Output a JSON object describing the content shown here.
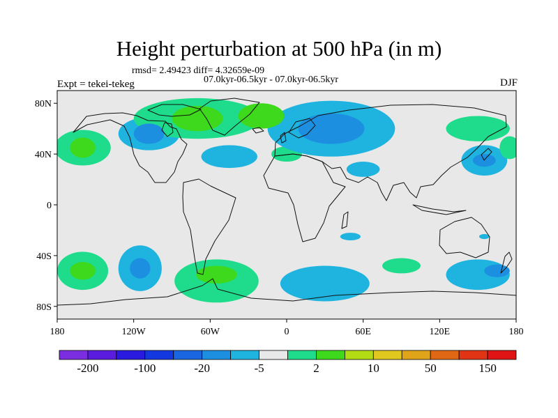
{
  "chart_data": {
    "type": "heatmap",
    "title": "Height perturbation at 500 hPa (in m)",
    "subtitle_rmsd": "rmsd= 2.49423 diff= 4.32659e-09",
    "subtitle_period": "07.0kyr-06.5kyr - 07.0kyr-06.5kyr",
    "left_label": "Expt = tekei-tekeg",
    "right_label": "DJF",
    "xlabel": "",
    "ylabel": "",
    "xlim": [
      -180,
      180
    ],
    "ylim": [
      -90,
      90
    ],
    "x_ticks": [
      {
        "value": -180,
        "label": "180"
      },
      {
        "value": -120,
        "label": "120W"
      },
      {
        "value": -60,
        "label": "60W"
      },
      {
        "value": 0,
        "label": "0"
      },
      {
        "value": 60,
        "label": "60E"
      },
      {
        "value": 120,
        "label": "120E"
      },
      {
        "value": 180,
        "label": "180"
      }
    ],
    "y_ticks": [
      {
        "value": 80,
        "label": "80N"
      },
      {
        "value": 40,
        "label": "40N"
      },
      {
        "value": 0,
        "label": "0"
      },
      {
        "value": -40,
        "label": "40S"
      },
      {
        "value": -80,
        "label": "80S"
      }
    ],
    "colorbar": {
      "colors": [
        "#7b2ee0",
        "#5a1de0",
        "#2a1ae0",
        "#1438e0",
        "#1a66e0",
        "#1d8fe0",
        "#1fb4e0",
        "#e8e8e8",
        "#1fdc8c",
        "#3ed81c",
        "#b4dc14",
        "#e0c81e",
        "#e0a41a",
        "#e06814",
        "#e03414",
        "#e01414"
      ],
      "labels": [
        {
          "after_box": 1,
          "label": "-200"
        },
        {
          "after_box": 3,
          "label": "-100"
        },
        {
          "after_box": 5,
          "label": "-20"
        },
        {
          "after_box": 7,
          "label": "-5"
        },
        {
          "after_box": 9,
          "label": "2"
        },
        {
          "after_box": 11,
          "label": "10"
        },
        {
          "after_box": 13,
          "label": "50"
        },
        {
          "after_box": 15,
          "label": "150"
        }
      ]
    },
    "anomaly_regions": [
      {
        "lon": -160,
        "lat": 45,
        "rlon": 22,
        "rlat": 14,
        "level": 1,
        "region": "north Pacific"
      },
      {
        "lon": -160,
        "lat": 45,
        "rlon": 10,
        "rlat": 8,
        "level": 2,
        "region": "north Pacific core"
      },
      {
        "lon": -108,
        "lat": 56,
        "rlon": 24,
        "rlat": 13,
        "level": -1,
        "region": "western Canada"
      },
      {
        "lon": -108,
        "lat": 56,
        "rlon": 12,
        "rlat": 8,
        "level": -2,
        "region": "western Canada core"
      },
      {
        "lon": -70,
        "lat": 68,
        "rlon": 50,
        "rlat": 16,
        "level": 1,
        "region": "Greenland / north Atlantic"
      },
      {
        "lon": -70,
        "lat": 68,
        "rlon": 20,
        "rlat": 10,
        "level": 2,
        "region": "Greenland core"
      },
      {
        "lon": -20,
        "lat": 70,
        "rlon": 18,
        "rlat": 10,
        "level": 2,
        "region": "Greenland east"
      },
      {
        "lon": -45,
        "lat": 38,
        "rlon": 22,
        "rlat": 9,
        "level": -1,
        "region": "subtropical Atlantic"
      },
      {
        "lon": 0,
        "lat": 40,
        "rlon": 12,
        "rlat": 6,
        "level": 1,
        "region": "western Europe"
      },
      {
        "lon": 35,
        "lat": 60,
        "rlon": 50,
        "rlat": 22,
        "level": -1,
        "region": "Eurasia"
      },
      {
        "lon": 35,
        "lat": 60,
        "rlon": 26,
        "rlat": 12,
        "level": -2,
        "region": "Eurasia core"
      },
      {
        "lon": 60,
        "lat": 28,
        "rlon": 13,
        "rlat": 6,
        "level": -1,
        "region": "Arabia / Iran"
      },
      {
        "lon": 155,
        "lat": 35,
        "rlon": 18,
        "rlat": 12,
        "level": -1,
        "region": "western Pacific"
      },
      {
        "lon": 155,
        "lat": 35,
        "rlon": 9,
        "rlat": 5,
        "level": -2,
        "region": "western Pacific core"
      },
      {
        "lon": 150,
        "lat": 60,
        "rlon": 25,
        "rlat": 10,
        "level": 1,
        "region": "northeast Asia"
      },
      {
        "lon": 175,
        "lat": 45,
        "rlon": 8,
        "rlat": 9,
        "level": 1,
        "region": "dateline north"
      },
      {
        "lon": 50,
        "lat": -25,
        "rlon": 8,
        "rlat": 3,
        "level": -1,
        "region": "Madagascar"
      },
      {
        "lon": 155,
        "lat": -25,
        "rlon": 4,
        "rlat": 2,
        "level": -1,
        "region": "eastern Australia"
      },
      {
        "lon": -160,
        "lat": -52,
        "rlon": 20,
        "rlat": 15,
        "level": 1,
        "region": "south Pacific west"
      },
      {
        "lon": -160,
        "lat": -52,
        "rlon": 10,
        "rlat": 7,
        "level": 2,
        "region": "south Pacific west core"
      },
      {
        "lon": -115,
        "lat": -50,
        "rlon": 17,
        "rlat": 18,
        "level": -1,
        "region": "south Pacific east"
      },
      {
        "lon": -115,
        "lat": -50,
        "rlon": 8,
        "rlat": 8,
        "level": -2,
        "region": "south Pacific east core"
      },
      {
        "lon": -55,
        "lat": -60,
        "rlon": 33,
        "rlat": 17,
        "level": 1,
        "region": "Drake Passage / south Atlantic"
      },
      {
        "lon": -55,
        "lat": -55,
        "rlon": 16,
        "rlat": 7,
        "level": 2,
        "region": "south Atlantic core"
      },
      {
        "lon": 30,
        "lat": -62,
        "rlon": 35,
        "rlat": 14,
        "level": -1,
        "region": "south Indian Ocean west"
      },
      {
        "lon": 90,
        "lat": -48,
        "rlon": 15,
        "rlat": 6,
        "level": 1,
        "region": "south Indian Ocean east"
      },
      {
        "lon": 150,
        "lat": -55,
        "rlon": 25,
        "rlat": 12,
        "level": -1,
        "region": "south of Australia"
      },
      {
        "lon": 165,
        "lat": -52,
        "rlon": 10,
        "rlat": 5,
        "level": -2,
        "region": "south of New Zealand"
      }
    ]
  }
}
